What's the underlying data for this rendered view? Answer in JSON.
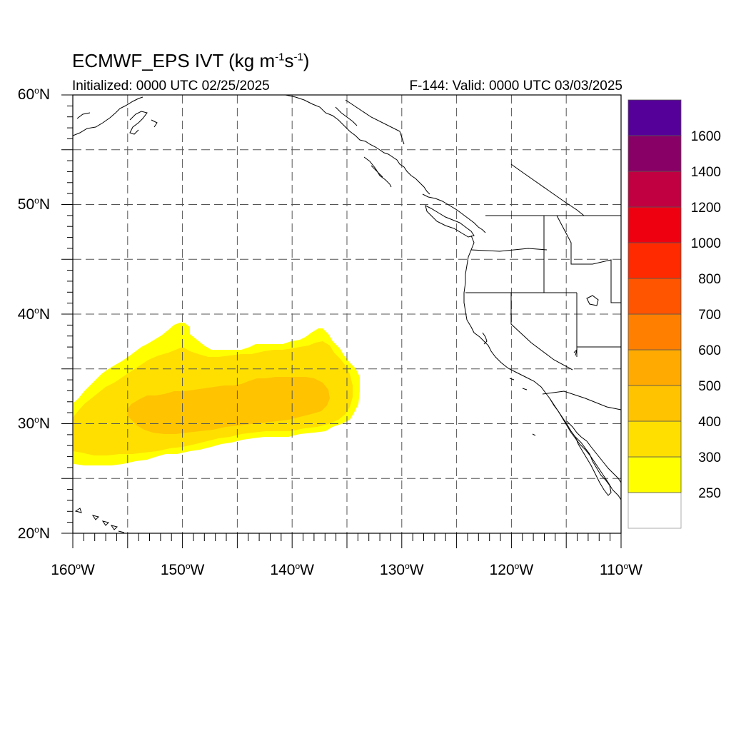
{
  "title": {
    "main": "ECMWF_EPS IVT (kg m",
    "exp1": "-1",
    "mid": "s",
    "exp2": "-1",
    "end": ")"
  },
  "subtitle_left": "Initialized: 0000 UTC 02/25/2025",
  "subtitle_right": "F-144: Valid: 0000 UTC 03/03/2025",
  "lat_labels": [
    {
      "num": "60",
      "hem": "N"
    },
    {
      "num": "50",
      "hem": "N"
    },
    {
      "num": "40",
      "hem": "N"
    },
    {
      "num": "30",
      "hem": "N"
    },
    {
      "num": "20",
      "hem": "N"
    }
  ],
  "lon_labels": [
    {
      "num": "160",
      "hem": "W"
    },
    {
      "num": "150",
      "hem": "W"
    },
    {
      "num": "140",
      "hem": "W"
    },
    {
      "num": "130",
      "hem": "W"
    },
    {
      "num": "120",
      "hem": "W"
    },
    {
      "num": "110",
      "hem": "W"
    }
  ],
  "degree_symbol": "o",
  "colorbar": {
    "labels": [
      "250",
      "300",
      "400",
      "500",
      "600",
      "700",
      "800",
      "1000",
      "1200",
      "1400",
      "1600"
    ],
    "colors": [
      "#ffffff",
      "#ffff00",
      "#ffdf00",
      "#ffc300",
      "#ffaa00",
      "#ff8000",
      "#ff5500",
      "#ff2a00",
      "#ee0011",
      "#c00040",
      "#880066",
      "#550099"
    ]
  },
  "map_extent": {
    "lon": [
      -160,
      -110
    ],
    "lat": [
      20,
      60
    ]
  },
  "ivt_plume": {
    "colors": {
      "250": "#ffff00",
      "300": "#ffdf00",
      "400": "#ffc300"
    }
  }
}
